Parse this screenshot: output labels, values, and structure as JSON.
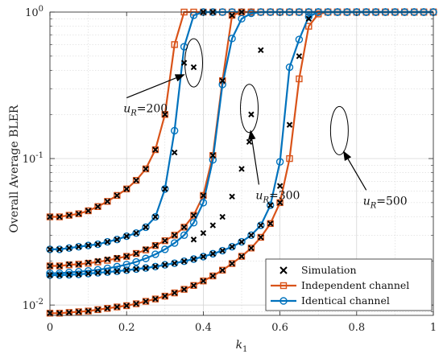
{
  "chart_data": {
    "type": "line",
    "xlabel": "k_1",
    "ylabel": "Overall Average BLER",
    "x_ticks": [
      "0",
      "0.2",
      "0.4",
      "0.6",
      "0.8",
      "1"
    ],
    "y_ticks": [
      {
        "base": "10",
        "exp": "0"
      },
      {
        "base": "10",
        "exp": "-1"
      },
      {
        "base": "10",
        "exp": "-2"
      }
    ],
    "xlim": [
      0,
      1
    ],
    "ylim": [
      0.0085,
      1
    ],
    "yscale": "log",
    "grid": true,
    "legend": {
      "position": "bottom-right",
      "entries": [
        "Simulation",
        "Independent channel",
        "Identical channel"
      ]
    },
    "colors": {
      "independent": "#D95319",
      "identical": "#0072BD",
      "simulation": "#000000"
    },
    "annotations": [
      {
        "text": "u_R=200",
        "base": "u",
        "sub": "R",
        "rest": "=200",
        "target": [
          0.375,
          0.45
        ],
        "label_at": [
          0.2,
          0.235
        ]
      },
      {
        "text": "u_R=300",
        "base": "u",
        "sub": "R",
        "rest": "=300",
        "target": [
          0.52,
          0.22
        ],
        "label_at": [
          0.545,
          0.06
        ]
      },
      {
        "text": "u_R=500",
        "base": "u",
        "sub": "R",
        "rest": "=500",
        "target": [
          0.755,
          0.155
        ],
        "label_at": [
          0.825,
          0.055
        ]
      }
    ],
    "x": [
      0,
      0.025,
      0.05,
      0.075,
      0.1,
      0.125,
      0.15,
      0.175,
      0.2,
      0.225,
      0.25,
      0.275,
      0.3,
      0.325,
      0.35,
      0.375,
      0.4,
      0.425,
      0.45,
      0.475,
      0.5,
      0.525,
      0.55,
      0.575,
      0.6,
      0.625,
      0.65,
      0.675,
      0.7,
      0.725,
      0.75,
      0.775,
      0.8,
      0.825,
      0.85,
      0.875,
      0.9,
      0.925,
      0.95,
      0.975,
      1
    ],
    "series": [
      {
        "name": "Independent channel",
        "group": "u_R=200",
        "kind": "independent",
        "values": [
          0.04,
          0.04,
          0.041,
          0.042,
          0.044,
          0.047,
          0.051,
          0.056,
          0.062,
          0.071,
          0.085,
          0.115,
          0.2,
          0.6,
          1,
          1,
          1,
          1,
          1,
          1,
          1,
          1,
          1,
          1,
          1,
          1,
          1,
          1,
          1,
          1,
          1,
          1,
          1,
          1,
          1,
          1,
          1,
          1,
          1,
          1,
          1
        ]
      },
      {
        "name": "Identical channel",
        "group": "u_R=200",
        "kind": "identical",
        "values": [
          0.024,
          0.024,
          0.0245,
          0.025,
          0.0255,
          0.026,
          0.027,
          0.028,
          0.0295,
          0.031,
          0.034,
          0.04,
          0.062,
          0.155,
          0.58,
          0.95,
          1,
          1,
          1,
          1,
          1,
          1,
          1,
          1,
          1,
          1,
          1,
          1,
          1,
          1,
          1,
          1,
          1,
          1,
          1,
          1,
          1,
          1,
          1,
          1,
          1
        ]
      },
      {
        "name": "Independent channel",
        "group": "u_R=300",
        "kind": "independent",
        "values": [
          0.0185,
          0.0185,
          0.0188,
          0.019,
          0.0193,
          0.0197,
          0.0202,
          0.0208,
          0.0215,
          0.0225,
          0.0238,
          0.0255,
          0.0275,
          0.03,
          0.034,
          0.041,
          0.056,
          0.105,
          0.34,
          0.95,
          1,
          1,
          1,
          1,
          1,
          1,
          1,
          1,
          1,
          1,
          1,
          1,
          1,
          1,
          1,
          1,
          1,
          1,
          1,
          1,
          1
        ]
      },
      {
        "name": "Identical channel",
        "group": "u_R=300",
        "kind": "identical",
        "values": [
          0.0165,
          0.0165,
          0.0167,
          0.0169,
          0.0171,
          0.0174,
          0.0178,
          0.0183,
          0.0189,
          0.0197,
          0.0208,
          0.0222,
          0.024,
          0.0265,
          0.03,
          0.0365,
          0.05,
          0.098,
          0.32,
          0.66,
          0.9,
          0.98,
          1,
          1,
          1,
          1,
          1,
          1,
          1,
          1,
          1,
          1,
          1,
          1,
          1,
          1,
          1,
          1,
          1,
          1,
          1
        ]
      },
      {
        "name": "Independent channel",
        "group": "u_R=500",
        "kind": "independent",
        "values": [
          0.0088,
          0.0088,
          0.0089,
          0.009,
          0.0091,
          0.0093,
          0.0095,
          0.0097,
          0.0099,
          0.0102,
          0.0106,
          0.011,
          0.0115,
          0.0121,
          0.0128,
          0.0136,
          0.0146,
          0.0158,
          0.0173,
          0.0192,
          0.0215,
          0.0245,
          0.029,
          0.036,
          0.05,
          0.1,
          0.35,
          0.8,
          0.97,
          1,
          1,
          1,
          1,
          1,
          1,
          1,
          1,
          1,
          1,
          1,
          1
        ]
      },
      {
        "name": "Identical channel",
        "group": "u_R=500",
        "kind": "identical",
        "values": [
          0.016,
          0.016,
          0.0161,
          0.0162,
          0.0164,
          0.0166,
          0.0168,
          0.017,
          0.0173,
          0.0176,
          0.0179,
          0.0183,
          0.0188,
          0.0193,
          0.0199,
          0.0206,
          0.0214,
          0.0224,
          0.0235,
          0.025,
          0.027,
          0.03,
          0.035,
          0.048,
          0.095,
          0.42,
          0.65,
          0.93,
          1,
          1,
          1,
          1,
          1,
          1,
          1,
          1,
          1,
          1,
          1,
          1,
          1
        ]
      },
      {
        "name": "Simulation",
        "kind": "simulation",
        "points": [
          [
            0,
            0.0185
          ],
          [
            0.025,
            0.0185
          ],
          [
            0.05,
            0.019
          ],
          [
            0.075,
            0.019
          ],
          [
            0.1,
            0.0195
          ],
          [
            0.125,
            0.02
          ],
          [
            0.15,
            0.0205
          ],
          [
            0.175,
            0.021
          ],
          [
            0.2,
            0.0215
          ],
          [
            0.225,
            0.0225
          ],
          [
            0.25,
            0.024
          ],
          [
            0.275,
            0.0255
          ],
          [
            0.3,
            0.0275
          ],
          [
            0.325,
            0.03
          ],
          [
            0.35,
            0.034
          ],
          [
            0.375,
            0.041
          ],
          [
            0.4,
            0.056
          ],
          [
            0.425,
            0.105
          ],
          [
            0.45,
            0.34
          ],
          [
            0.475,
            0.95
          ],
          [
            0.5,
            1
          ],
          [
            0,
            0.024
          ],
          [
            0.025,
            0.024
          ],
          [
            0.05,
            0.0245
          ],
          [
            0.075,
            0.025
          ],
          [
            0.1,
            0.0255
          ],
          [
            0.125,
            0.026
          ],
          [
            0.15,
            0.027
          ],
          [
            0.175,
            0.028
          ],
          [
            0.2,
            0.0295
          ],
          [
            0.225,
            0.031
          ],
          [
            0.25,
            0.034
          ],
          [
            0.275,
            0.04
          ],
          [
            0.3,
            0.062
          ],
          [
            0.325,
            0.11
          ],
          [
            0.35,
            0.45
          ],
          [
            0.375,
            0.42
          ],
          [
            0.4,
            1
          ],
          [
            0.425,
            1
          ],
          [
            0,
            0.04
          ],
          [
            0.025,
            0.04
          ],
          [
            0.05,
            0.041
          ],
          [
            0.075,
            0.042
          ],
          [
            0.1,
            0.044
          ],
          [
            0.125,
            0.047
          ],
          [
            0.15,
            0.051
          ],
          [
            0.175,
            0.056
          ],
          [
            0.2,
            0.062
          ],
          [
            0.225,
            0.071
          ],
          [
            0.25,
            0.085
          ],
          [
            0.275,
            0.115
          ],
          [
            0.3,
            0.2
          ],
          [
            0.375,
            0.028
          ],
          [
            0.4,
            0.031
          ],
          [
            0.425,
            0.035
          ],
          [
            0.45,
            0.04
          ],
          [
            0.475,
            0.055
          ],
          [
            0.5,
            0.085
          ],
          [
            0.52,
            0.13
          ],
          [
            0.525,
            0.2
          ],
          [
            0.55,
            0.55
          ],
          [
            0,
            0.016
          ],
          [
            0.025,
            0.016
          ],
          [
            0.05,
            0.0161
          ],
          [
            0.075,
            0.0162
          ],
          [
            0.1,
            0.0164
          ],
          [
            0.125,
            0.0166
          ],
          [
            0.15,
            0.0168
          ],
          [
            0.175,
            0.017
          ],
          [
            0.2,
            0.0173
          ],
          [
            0.225,
            0.0176
          ],
          [
            0.25,
            0.0179
          ],
          [
            0.275,
            0.0183
          ],
          [
            0.3,
            0.0188
          ],
          [
            0.325,
            0.0193
          ],
          [
            0.35,
            0.0199
          ],
          [
            0.375,
            0.0206
          ],
          [
            0.4,
            0.0214
          ],
          [
            0.425,
            0.0224
          ],
          [
            0.45,
            0.0235
          ],
          [
            0.475,
            0.025
          ],
          [
            0.5,
            0.027
          ],
          [
            0.525,
            0.03
          ],
          [
            0.55,
            0.035
          ],
          [
            0.575,
            0.048
          ],
          [
            0.6,
            0.065
          ],
          [
            0.625,
            0.17
          ],
          [
            0.65,
            0.5
          ],
          [
            0.675,
            0.9
          ],
          [
            0,
            0.0088
          ],
          [
            0.025,
            0.0088
          ],
          [
            0.05,
            0.0089
          ],
          [
            0.075,
            0.009
          ],
          [
            0.1,
            0.0091
          ],
          [
            0.125,
            0.0093
          ],
          [
            0.15,
            0.0095
          ],
          [
            0.175,
            0.0097
          ],
          [
            0.2,
            0.0099
          ],
          [
            0.225,
            0.0102
          ],
          [
            0.25,
            0.0106
          ],
          [
            0.275,
            0.011
          ],
          [
            0.3,
            0.0115
          ],
          [
            0.325,
            0.0121
          ],
          [
            0.35,
            0.0128
          ],
          [
            0.375,
            0.0136
          ],
          [
            0.4,
            0.0146
          ],
          [
            0.425,
            0.0158
          ],
          [
            0.45,
            0.0173
          ],
          [
            0.475,
            0.0192
          ],
          [
            0.5,
            0.0215
          ],
          [
            0.525,
            0.0245
          ],
          [
            0.55,
            0.029
          ],
          [
            0.575,
            0.036
          ],
          [
            0.6,
            0.05
          ]
        ]
      }
    ]
  }
}
